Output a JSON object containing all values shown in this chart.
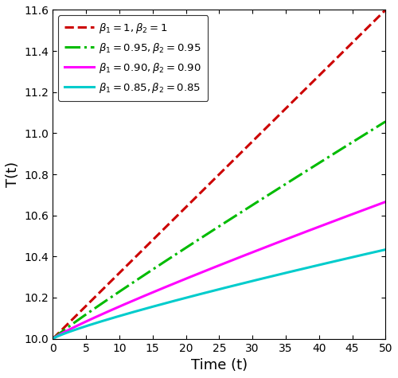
{
  "title": "",
  "xlabel": "Time (t)",
  "ylabel": "T(t)",
  "xlim": [
    0,
    50
  ],
  "ylim": [
    10.0,
    11.6
  ],
  "yticks": [
    10.0,
    10.2,
    10.4,
    10.6,
    10.8,
    11.0,
    11.2,
    11.4,
    11.6
  ],
  "xticks": [
    0,
    5,
    10,
    15,
    20,
    25,
    30,
    35,
    40,
    45,
    50
  ],
  "T0": 10.0,
  "lines": [
    {
      "beta": 1.0,
      "color": "#cc0000",
      "linestyle": "dashed",
      "linewidth": 2.2,
      "label": "$\\beta_1 = 1, \\beta_2 = 1$",
      "scale": 0.032
    },
    {
      "beta": 0.95,
      "color": "#00bb00",
      "linestyle": "dashdot",
      "linewidth": 2.2,
      "label": "$\\beta_1 = 0.95, \\beta_2 = 0.95$",
      "scale": 0.0257
    },
    {
      "beta": 0.9,
      "color": "#ff00ff",
      "linestyle": "solid",
      "linewidth": 2.2,
      "label": "$\\beta_1 = 0.90, \\beta_2 = 0.90$",
      "scale": 0.0197
    },
    {
      "beta": 0.85,
      "color": "#00cccc",
      "linestyle": "solid",
      "linewidth": 2.2,
      "label": "$\\beta_1 = 0.85, \\beta_2 = 0.85$",
      "scale": 0.0156
    }
  ]
}
